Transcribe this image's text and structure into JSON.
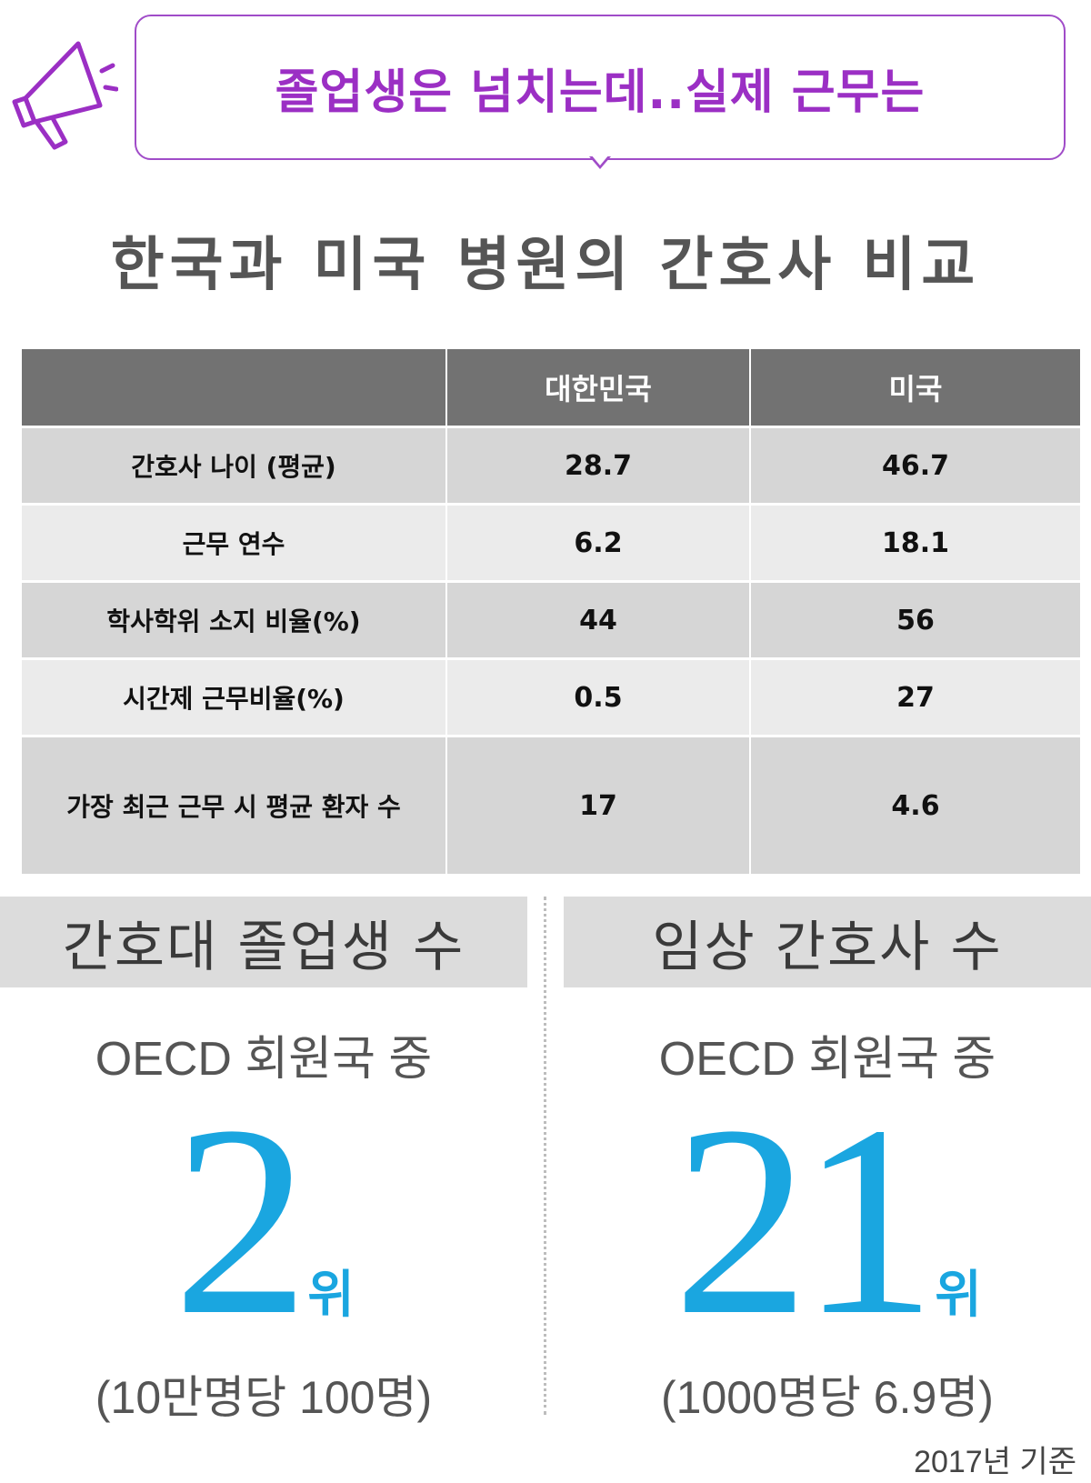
{
  "banner": {
    "text": "졸업생은 넘치는데..실제 근무는",
    "accent": "#9b2fc4",
    "icon": "megaphone-icon"
  },
  "title": "한국과 미국 병원의 간호사 비교",
  "table": {
    "headers": [
      "",
      "대한민국",
      "미국"
    ],
    "rows": [
      [
        "간호사 나이 (평균)",
        "28.7",
        "46.7"
      ],
      [
        "근무 연수",
        "6.2",
        "18.1"
      ],
      [
        "학사학위 소지 비율(%)",
        "44",
        "56"
      ],
      [
        "시간제 근무비율(%)",
        "0.5",
        "27"
      ],
      [
        "가장 최근 근무 시 평균 환자 수",
        "17",
        "4.6"
      ]
    ]
  },
  "panels": [
    {
      "heading": "간호대 졸업생 수",
      "sub": "OECD 회원국 중",
      "rank": "2",
      "unit": "위",
      "note": "(10만명당 100명)"
    },
    {
      "heading": "임상 간호사 수",
      "sub": "OECD 회원국 중",
      "rank": "21",
      "unit": "위",
      "note": "(1000명당 6.9명)"
    }
  ],
  "rank_color": "#1aa6e0",
  "footnote": "2017년 기준"
}
